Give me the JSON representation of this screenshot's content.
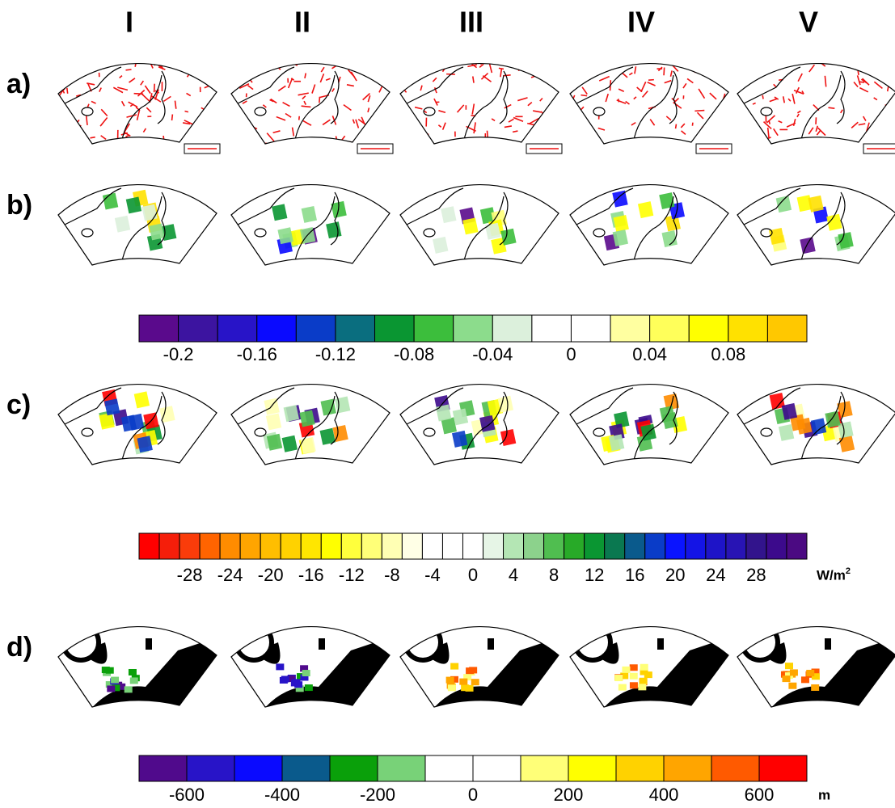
{
  "columns": [
    "I",
    "II",
    "III",
    "IV",
    "V"
  ],
  "rows": [
    "a)",
    "b)",
    "c)",
    "d)"
  ],
  "colorbars": [
    {
      "range": [
        -0.22,
        0.12
      ],
      "colors": [
        "#5a0a8c",
        "#3c14a0",
        "#2814c8",
        "#0a0aff",
        "#0a3cc8",
        "#0a6e7f",
        "#0a9632",
        "#3cbe3c",
        "#8cdc8c",
        "#dcf0dc",
        "#ffffff",
        "#ffffff",
        "#ffffa0",
        "#ffff5a",
        "#ffff00",
        "#ffe100",
        "#ffc800"
      ],
      "ticks": [
        -0.2,
        -0.16,
        -0.12,
        -0.08,
        -0.04,
        0,
        0.04,
        0.08
      ]
    },
    {
      "range": [
        -33,
        33
      ],
      "colors": [
        "#ff0000",
        "#f51e0a",
        "#fa3c0a",
        "#ff6400",
        "#ff8c00",
        "#ffa500",
        "#ffbe00",
        "#ffd200",
        "#ffe600",
        "#ffff00",
        "#ffff3c",
        "#ffff78",
        "#ffffb4",
        "#ffffe6",
        "#ffffff",
        "#ffffff",
        "#ffffff",
        "#e6f5e6",
        "#b4e6b4",
        "#8cd28c",
        "#50be50",
        "#28aa28",
        "#0a9632",
        "#0a7850",
        "#0a5a8c",
        "#0a3cc8",
        "#0a14ff",
        "#1414e6",
        "#1e14c8",
        "#2814b4",
        "#32148c",
        "#3c0a8c",
        "#4b0a82"
      ],
      "ticks": [
        -28,
        -24,
        -20,
        -16,
        -12,
        -8,
        -4,
        0,
        4,
        8,
        12,
        16,
        20,
        24,
        28
      ],
      "unit": "W/m",
      "unit_superscript": "2"
    },
    {
      "range": [
        -700,
        700
      ],
      "colors": [
        "#500a8c",
        "#2814c8",
        "#0a0aff",
        "#0a5a8c",
        "#0aa00a",
        "#78d278",
        "#ffffff",
        "#ffffff",
        "#ffff78",
        "#ffff00",
        "#ffd200",
        "#ffa500",
        "#ff5a00",
        "#ff0000"
      ],
      "ticks": [
        -600,
        -400,
        -200,
        0,
        200,
        400,
        600
      ],
      "unit": "m"
    }
  ]
}
